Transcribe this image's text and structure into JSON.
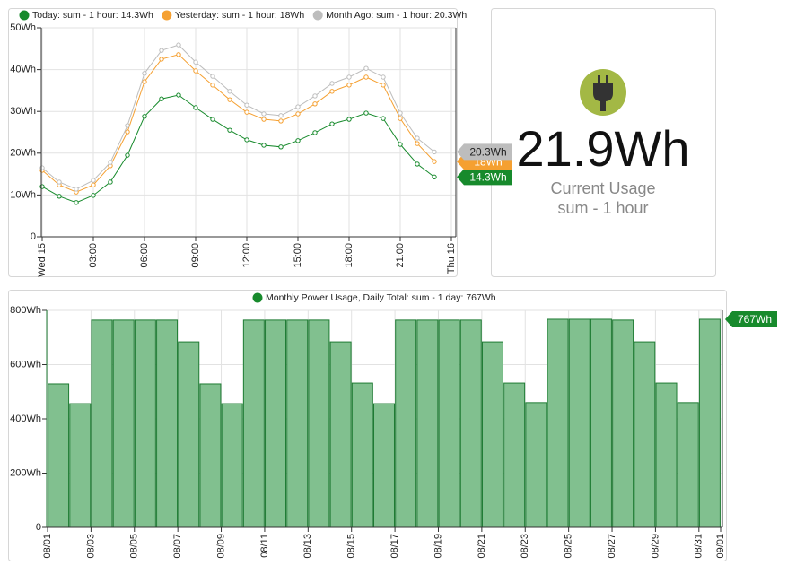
{
  "chart_data": [
    {
      "type": "line",
      "x": [
        0,
        1,
        2,
        3,
        4,
        5,
        6,
        7,
        8,
        9,
        10,
        11,
        12,
        13,
        14,
        15,
        16,
        17,
        18,
        19,
        20,
        21,
        22,
        23
      ],
      "xlim": [
        0,
        24
      ],
      "xticks": [
        {
          "value": 0,
          "label": "Wed 15"
        },
        {
          "value": 3,
          "label": "03:00"
        },
        {
          "value": 6,
          "label": "06:00"
        },
        {
          "value": 9,
          "label": "09:00"
        },
        {
          "value": 12,
          "label": "12:00"
        },
        {
          "value": 15,
          "label": "15:00"
        },
        {
          "value": 18,
          "label": "18:00"
        },
        {
          "value": 21,
          "label": "21:00"
        },
        {
          "value": 24,
          "label": "Thu 16"
        }
      ],
      "ylim": [
        0,
        50
      ],
      "yticks": [
        0,
        {
          "value": 10,
          "label": "10Wh"
        },
        {
          "value": 20,
          "label": "20Wh"
        },
        {
          "value": 30,
          "label": "30Wh"
        },
        {
          "value": 40,
          "label": "40Wh"
        },
        {
          "value": 50,
          "label": "50Wh"
        }
      ],
      "grid": true,
      "series": [
        {
          "name": "Today: sum - 1 hour: 14.3Wh",
          "color": "#178a2c",
          "end_label": "14.3Wh",
          "values": [
            12.0,
            9.7,
            8.2,
            9.9,
            13.1,
            19.5,
            28.8,
            33.0,
            33.9,
            30.9,
            28.1,
            25.5,
            23.2,
            21.9,
            21.5,
            23.0,
            24.9,
            27.0,
            28.1,
            29.6,
            28.3,
            22.1,
            17.4,
            14.3
          ]
        },
        {
          "name": "Yesterday: sum - 1 hour: 18Wh",
          "color": "#f5a031",
          "end_label": "18Wh",
          "values": [
            15.9,
            12.4,
            10.7,
            12.4,
            17.0,
            25.1,
            37.1,
            42.5,
            43.6,
            39.7,
            36.3,
            32.8,
            29.8,
            28.1,
            27.7,
            29.4,
            31.8,
            34.8,
            36.3,
            38.2,
            36.3,
            28.3,
            22.3,
            18.0
          ]
        },
        {
          "name": "Month Ago: sum - 1 hour: 20.3Wh",
          "color": "#bdbdbd",
          "end_label": "20.3Wh",
          "values": [
            16.5,
            13.1,
            11.4,
            13.5,
            17.8,
            26.6,
            39.1,
            44.6,
            45.9,
            41.8,
            38.4,
            34.8,
            31.5,
            29.4,
            29.0,
            31.1,
            33.7,
            36.7,
            38.2,
            40.3,
            38.2,
            29.6,
            23.6,
            20.3
          ]
        }
      ]
    },
    {
      "type": "bar",
      "xlim": [
        0,
        31
      ],
      "xticks": [
        {
          "value": 0,
          "label": "08/01"
        },
        {
          "value": 2,
          "label": "08/03"
        },
        {
          "value": 4,
          "label": "08/05"
        },
        {
          "value": 6,
          "label": "08/07"
        },
        {
          "value": 8,
          "label": "08/09"
        },
        {
          "value": 10,
          "label": "08/11"
        },
        {
          "value": 12,
          "label": "08/13"
        },
        {
          "value": 14,
          "label": "08/15"
        },
        {
          "value": 16,
          "label": "08/17"
        },
        {
          "value": 18,
          "label": "08/19"
        },
        {
          "value": 20,
          "label": "08/21"
        },
        {
          "value": 22,
          "label": "08/23"
        },
        {
          "value": 24,
          "label": "08/25"
        },
        {
          "value": 26,
          "label": "08/27"
        },
        {
          "value": 28,
          "label": "08/29"
        },
        {
          "value": 30,
          "label": "08/31"
        },
        {
          "value": 31,
          "label": "09/01"
        }
      ],
      "ylim": [
        0,
        800
      ],
      "yticks": [
        0,
        {
          "value": 200,
          "label": "200Wh"
        },
        {
          "value": 400,
          "label": "400Wh"
        },
        {
          "value": 600,
          "label": "600Wh"
        },
        {
          "value": 800,
          "label": "800Wh"
        }
      ],
      "grid": true,
      "series": [
        {
          "name": "Monthly Power Usage, Daily Total: sum - 1 day: 767Wh",
          "color": "#81c08f",
          "end_label": "767Wh",
          "values": [
            529,
            456,
            764,
            764,
            764,
            764,
            684,
            529,
            456,
            764,
            764,
            764,
            764,
            684,
            532,
            456,
            764,
            764,
            764,
            764,
            684,
            532,
            460,
            767,
            767,
            767,
            764,
            684,
            532,
            460,
            767
          ]
        }
      ]
    }
  ],
  "stat": {
    "value": "21.9Wh",
    "label": "Current Usage",
    "sublabel": "sum - 1 hour"
  }
}
